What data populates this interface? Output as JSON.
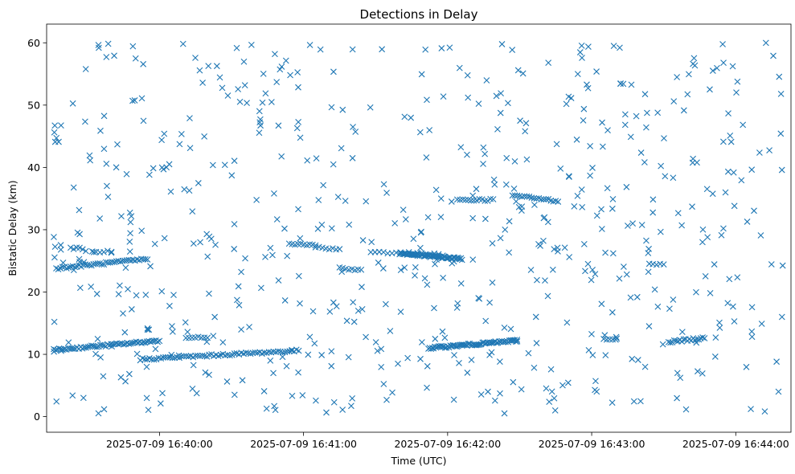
{
  "chart_data": {
    "type": "scatter",
    "title": "Detections in Delay",
    "xlabel": "Time (UTC)",
    "ylabel": "Bistatic Delay (km)",
    "marker": "x",
    "color": "#1f77b4",
    "grid": false,
    "legend": "none",
    "xlim": [
      "2025-07-09 16:39:13",
      "2025-07-09 16:44:23"
    ],
    "ylim": [
      -2.5,
      63.0
    ],
    "x_ticks": [
      "2025-07-09 16:40:00",
      "2025-07-09 16:41:00",
      "2025-07-09 16:42:00",
      "2025-07-09 16:43:00",
      "2025-07-09 16:44:00"
    ],
    "y_ticks": [
      "0",
      "10",
      "20",
      "30",
      "40",
      "50",
      "60"
    ],
    "tracks": [
      {
        "x_start": "2025-07-09 16:39:16",
        "x_end": "2025-07-09 16:40:00",
        "y_start": 10.7,
        "y_end": 12.2,
        "points": 60
      },
      {
        "x_start": "2025-07-09 16:39:17",
        "x_end": "2025-07-09 16:39:55",
        "y_start": 23.8,
        "y_end": 25.3,
        "points": 45
      },
      {
        "x_start": "2025-07-09 16:39:52",
        "x_end": "2025-07-09 16:40:58",
        "y_start": 9.2,
        "y_end": 10.6,
        "points": 70
      },
      {
        "x_start": "2025-07-09 16:41:28",
        "x_end": "2025-07-09 16:41:58",
        "y_start": 26.5,
        "y_end": 26.0,
        "points": 18
      },
      {
        "x_start": "2025-07-09 16:41:40",
        "x_end": "2025-07-09 16:42:06",
        "y_start": 26.2,
        "y_end": 25.3,
        "points": 60
      },
      {
        "x_start": "2025-07-09 16:41:52",
        "x_end": "2025-07-09 16:42:29",
        "y_start": 11.0,
        "y_end": 12.2,
        "points": 70
      },
      {
        "x_start": "2025-07-09 16:42:04",
        "x_end": "2025-07-09 16:42:19",
        "y_start": 34.8,
        "y_end": 34.8,
        "points": 14
      },
      {
        "x_start": "2025-07-09 16:42:27",
        "x_end": "2025-07-09 16:42:46",
        "y_start": 35.5,
        "y_end": 34.6,
        "points": 20
      },
      {
        "x_start": "2025-07-09 16:43:32",
        "x_end": "2025-07-09 16:43:47",
        "y_start": 12.0,
        "y_end": 12.6,
        "points": 20
      },
      {
        "x_start": "2025-07-09 16:40:11",
        "x_end": "2025-07-09 16:40:20",
        "y_start": 12.8,
        "y_end": 12.8,
        "points": 8
      },
      {
        "x_start": "2025-07-09 16:40:54",
        "x_end": "2025-07-09 16:41:05",
        "y_start": 27.8,
        "y_end": 27.5,
        "points": 10
      },
      {
        "x_start": "2025-07-09 16:41:05",
        "x_end": "2025-07-09 16:41:15",
        "y_start": 27.2,
        "y_end": 26.9,
        "points": 8
      },
      {
        "x_start": "2025-07-09 16:41:15",
        "x_end": "2025-07-09 16:41:24",
        "y_start": 23.8,
        "y_end": 23.5,
        "points": 8
      },
      {
        "x_start": "2025-07-09 16:39:23",
        "x_end": "2025-07-09 16:39:28",
        "y_start": 27.0,
        "y_end": 27.0,
        "points": 5
      },
      {
        "x_start": "2025-07-09 16:39:32",
        "x_end": "2025-07-09 16:39:40",
        "y_start": 26.5,
        "y_end": 26.5,
        "points": 6
      },
      {
        "x_start": "2025-07-09 16:43:05",
        "x_end": "2025-07-09 16:43:10",
        "y_start": 12.4,
        "y_end": 12.4,
        "points": 5
      },
      {
        "x_start": "2025-07-09 16:43:24",
        "x_end": "2025-07-09 16:43:30",
        "y_start": 24.5,
        "y_end": 24.5,
        "points": 5
      }
    ],
    "clutter_points": 620,
    "clutter_seed": 7,
    "clutter_x_range": [
      "2025-07-09 16:39:16",
      "2025-07-09 16:44:20"
    ],
    "clutter_y_range": [
      0.5,
      60.0
    ]
  }
}
